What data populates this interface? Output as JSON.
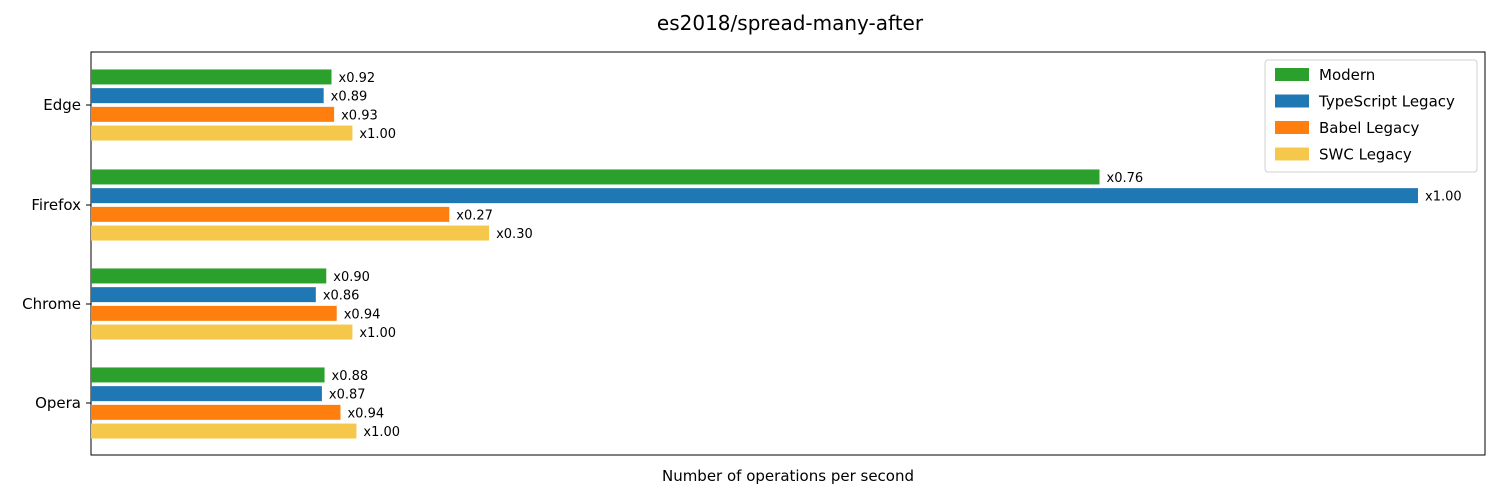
{
  "chart_data": {
    "type": "bar",
    "orientation": "horizontal",
    "title": "es2018/spread-many-after",
    "xlabel": "Number of operations per second",
    "ylabel": "",
    "x_ticks_visible": false,
    "grid": false,
    "legend_position": "top-right",
    "categories": [
      "Edge",
      "Firefox",
      "Chrome",
      "Opera"
    ],
    "series": [
      {
        "name": "Modern",
        "color": "#2ca02c",
        "labels": [
          "x0.92",
          "x0.76",
          "x0.90",
          "x0.88"
        ],
        "values": [
          0.92,
          0.76,
          0.9,
          0.88
        ]
      },
      {
        "name": "TypeScript Legacy",
        "color": "#1f77b4",
        "labels": [
          "x0.89",
          "x1.00",
          "x0.86",
          "x0.87"
        ],
        "values": [
          0.89,
          1.0,
          0.86,
          0.87
        ]
      },
      {
        "name": "Babel Legacy",
        "color": "#ff7f0e",
        "labels": [
          "x0.93",
          "x0.27",
          "x0.94",
          "x0.94"
        ],
        "values": [
          0.93,
          0.27,
          0.94,
          0.94
        ]
      },
      {
        "name": "SWC Legacy",
        "color": "#f5c84c",
        "labels": [
          "x1.00",
          "x0.30",
          "x1.00",
          "x1.00"
        ],
        "values": [
          1.0,
          0.3,
          1.0,
          1.0
        ]
      }
    ],
    "relative_scale": [
      0.197,
      1.0,
      0.197,
      0.2
    ]
  }
}
